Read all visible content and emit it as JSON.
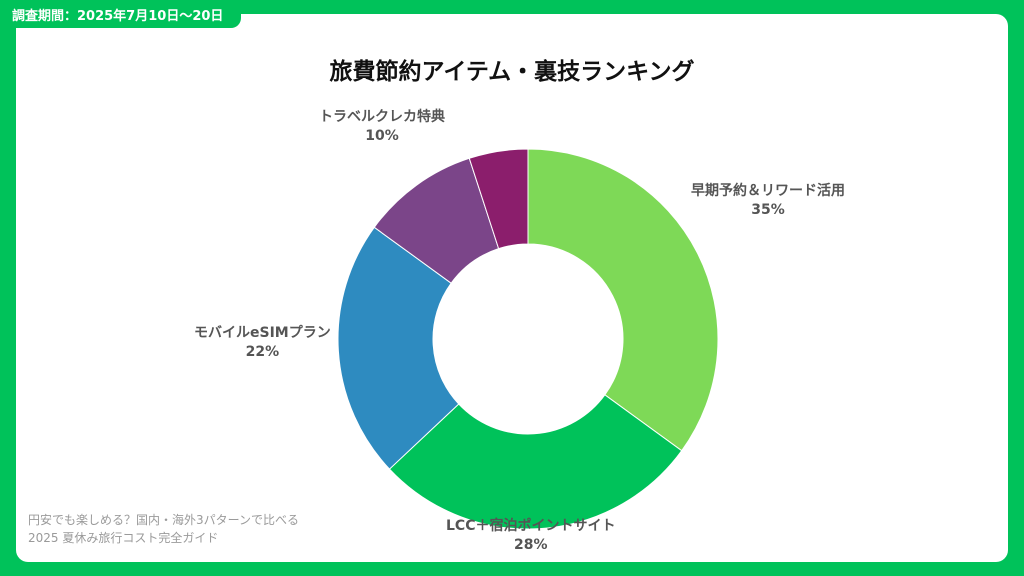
{
  "period_tab": "調査期間：2025年7月10日～20日",
  "footer": {
    "line1": "円安でも楽しめる？国内・海外3パターンで比べる",
    "line2": "2025 夏休み旅行コスト完全ガイド"
  },
  "chart_data": {
    "type": "pie",
    "donut": true,
    "title": "旅費節約アイテム・裏技ランキング",
    "legend": "none",
    "slices": [
      {
        "name": "早期予約＆リワード活用",
        "value": 35,
        "label": "35%",
        "color": "#7ed957"
      },
      {
        "name": "LCC＋宿泊ポイントサイト",
        "value": 28,
        "label": "28%",
        "color": "#00c25a"
      },
      {
        "name": "モバイルeSIMプラン",
        "value": 22,
        "label": "22%",
        "color": "#2e8bc0"
      },
      {
        "name": "トラベルクレカ特典",
        "value": 10,
        "label": "10%",
        "color": "#7b4589"
      },
      {
        "name": "",
        "value": 5,
        "label": "",
        "color": "#8b1e6c"
      }
    ]
  }
}
